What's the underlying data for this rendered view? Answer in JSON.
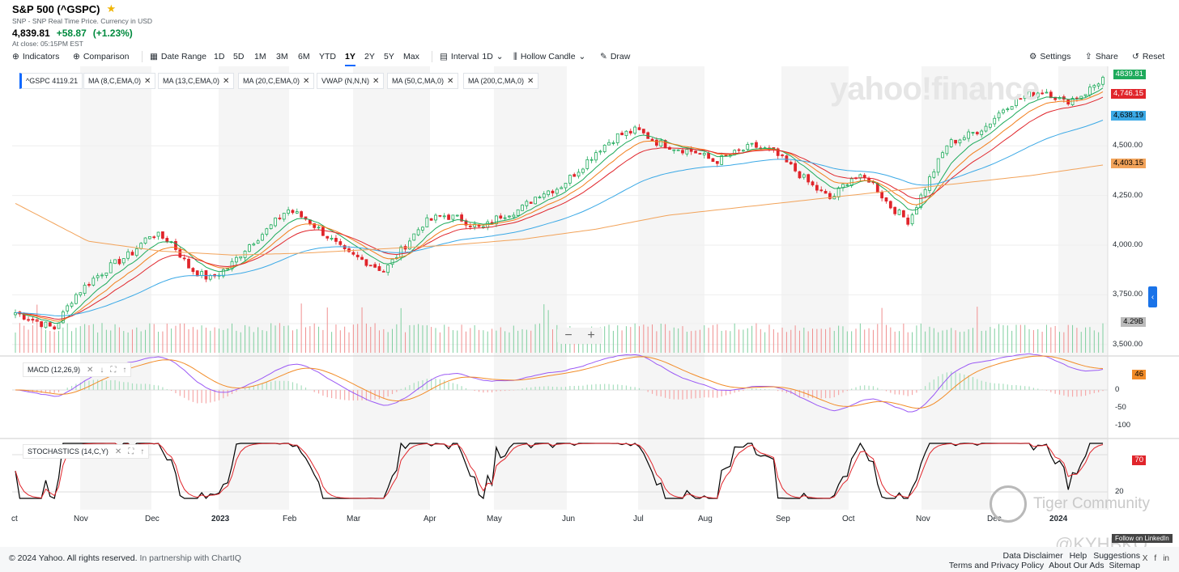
{
  "header": {
    "title": "S&P 500 (^GSPC)",
    "subtitle": "SNP - SNP Real Time Price. Currency in USD",
    "price": "4,839.81",
    "change": "+58.87",
    "change_pct": "(+1.23%)",
    "close_time": "At close: 05:15PM EST"
  },
  "toolbar": {
    "indicators": "Indicators",
    "comparison": "Comparison",
    "date_range": "Date Range",
    "ranges": [
      "1D",
      "5D",
      "1M",
      "3M",
      "6M",
      "YTD",
      "1Y",
      "2Y",
      "5Y",
      "Max"
    ],
    "active_range": "1Y",
    "interval": "Interval",
    "interval_val": "1D",
    "candle": "Hollow Candle",
    "draw": "Draw",
    "settings": "Settings",
    "share": "Share",
    "reset": "Reset"
  },
  "legend": [
    "^GSPC  4119.21",
    "MA (8,C,EMA,0)",
    "MA (13,C,EMA,0)",
    "MA (20,C,EMA,0)",
    "VWAP (N,N,N)",
    "MA (50,C,MA,0)",
    "MA (200,C,MA,0)"
  ],
  "watermark": "yahoo!finance",
  "panels": {
    "macd": "MACD (12,26,9)",
    "stoch": "STOCHASTICS (14,C,Y)"
  },
  "price_tags": {
    "last": "4839.81",
    "ma20": "4,746.15",
    "ma50": "4,638.19",
    "ma200": "4,403.15",
    "volume": "4.29B",
    "macd": "46",
    "stoch": "70"
  },
  "colors": {
    "up": "#1eaa5b",
    "down": "#e0252b",
    "ema8": "#1eaa5b",
    "ema13": "#f27d1a",
    "ema20": "#e0252b",
    "ma50": "#3ba9e6",
    "ma200": "#f2a35a",
    "macd": "#9b59f5",
    "signal": "#f28c28"
  },
  "chart_data": {
    "type": "candlestick",
    "title": "S&P 500 (^GSPC) 1Y daily",
    "price_axis": {
      "ticks": [
        "3,500.00",
        "3,750.00",
        "4,000.00",
        "4,250.00",
        "4,500.00"
      ],
      "range": [
        3450,
        4900
      ]
    },
    "macd_axis": {
      "ticks": [
        "0",
        "-50",
        "-100"
      ]
    },
    "stoch_axis": {
      "ticks": [
        "20"
      ]
    },
    "months": [
      "ct",
      "Nov",
      "Dec",
      "2023",
      "Feb",
      "Mar",
      "Apr",
      "May",
      "Jun",
      "Jul",
      "Aug",
      "Sep",
      "Oct",
      "Nov",
      "Dec",
      "2024"
    ],
    "close_waypoints": [
      3660,
      3620,
      3580,
      3740,
      3830,
      3900,
      3960,
      4060,
      4020,
      3880,
      3830,
      3890,
      4000,
      4080,
      4180,
      4130,
      4050,
      3960,
      3920,
      3870,
      3990,
      4110,
      4150,
      4130,
      4080,
      4150,
      4180,
      4260,
      4290,
      4380,
      4480,
      4550,
      4580,
      4520,
      4490,
      4470,
      4420,
      4460,
      4500,
      4470,
      4390,
      4300,
      4230,
      4340,
      4330,
      4200,
      4120,
      4320,
      4510,
      4550,
      4600,
      4700,
      4750,
      4780,
      4720,
      4760,
      4839.81
    ],
    "ma200_waypoints": [
      4210,
      4020,
      3970,
      3950,
      3960,
      3980,
      4000,
      4030,
      4080,
      4150,
      4190,
      4230,
      4270,
      4310,
      4350,
      4403.15
    ]
  },
  "footer": {
    "copyright": "© 2024 Yahoo. All rights reserved.",
    "partner": "In partnership with ChartIQ",
    "links1": [
      "Data Disclaimer",
      "Help",
      "Suggestions"
    ],
    "links2": [
      "Terms and Privacy Policy",
      "About Our Ads",
      "Sitemap"
    ],
    "social": [
      "X",
      "f",
      "in"
    ]
  },
  "overlay": {
    "tiger": "Tiger Community",
    "handle": "@KYHBKO",
    "linkedin": "Follow on LinkedIn"
  }
}
